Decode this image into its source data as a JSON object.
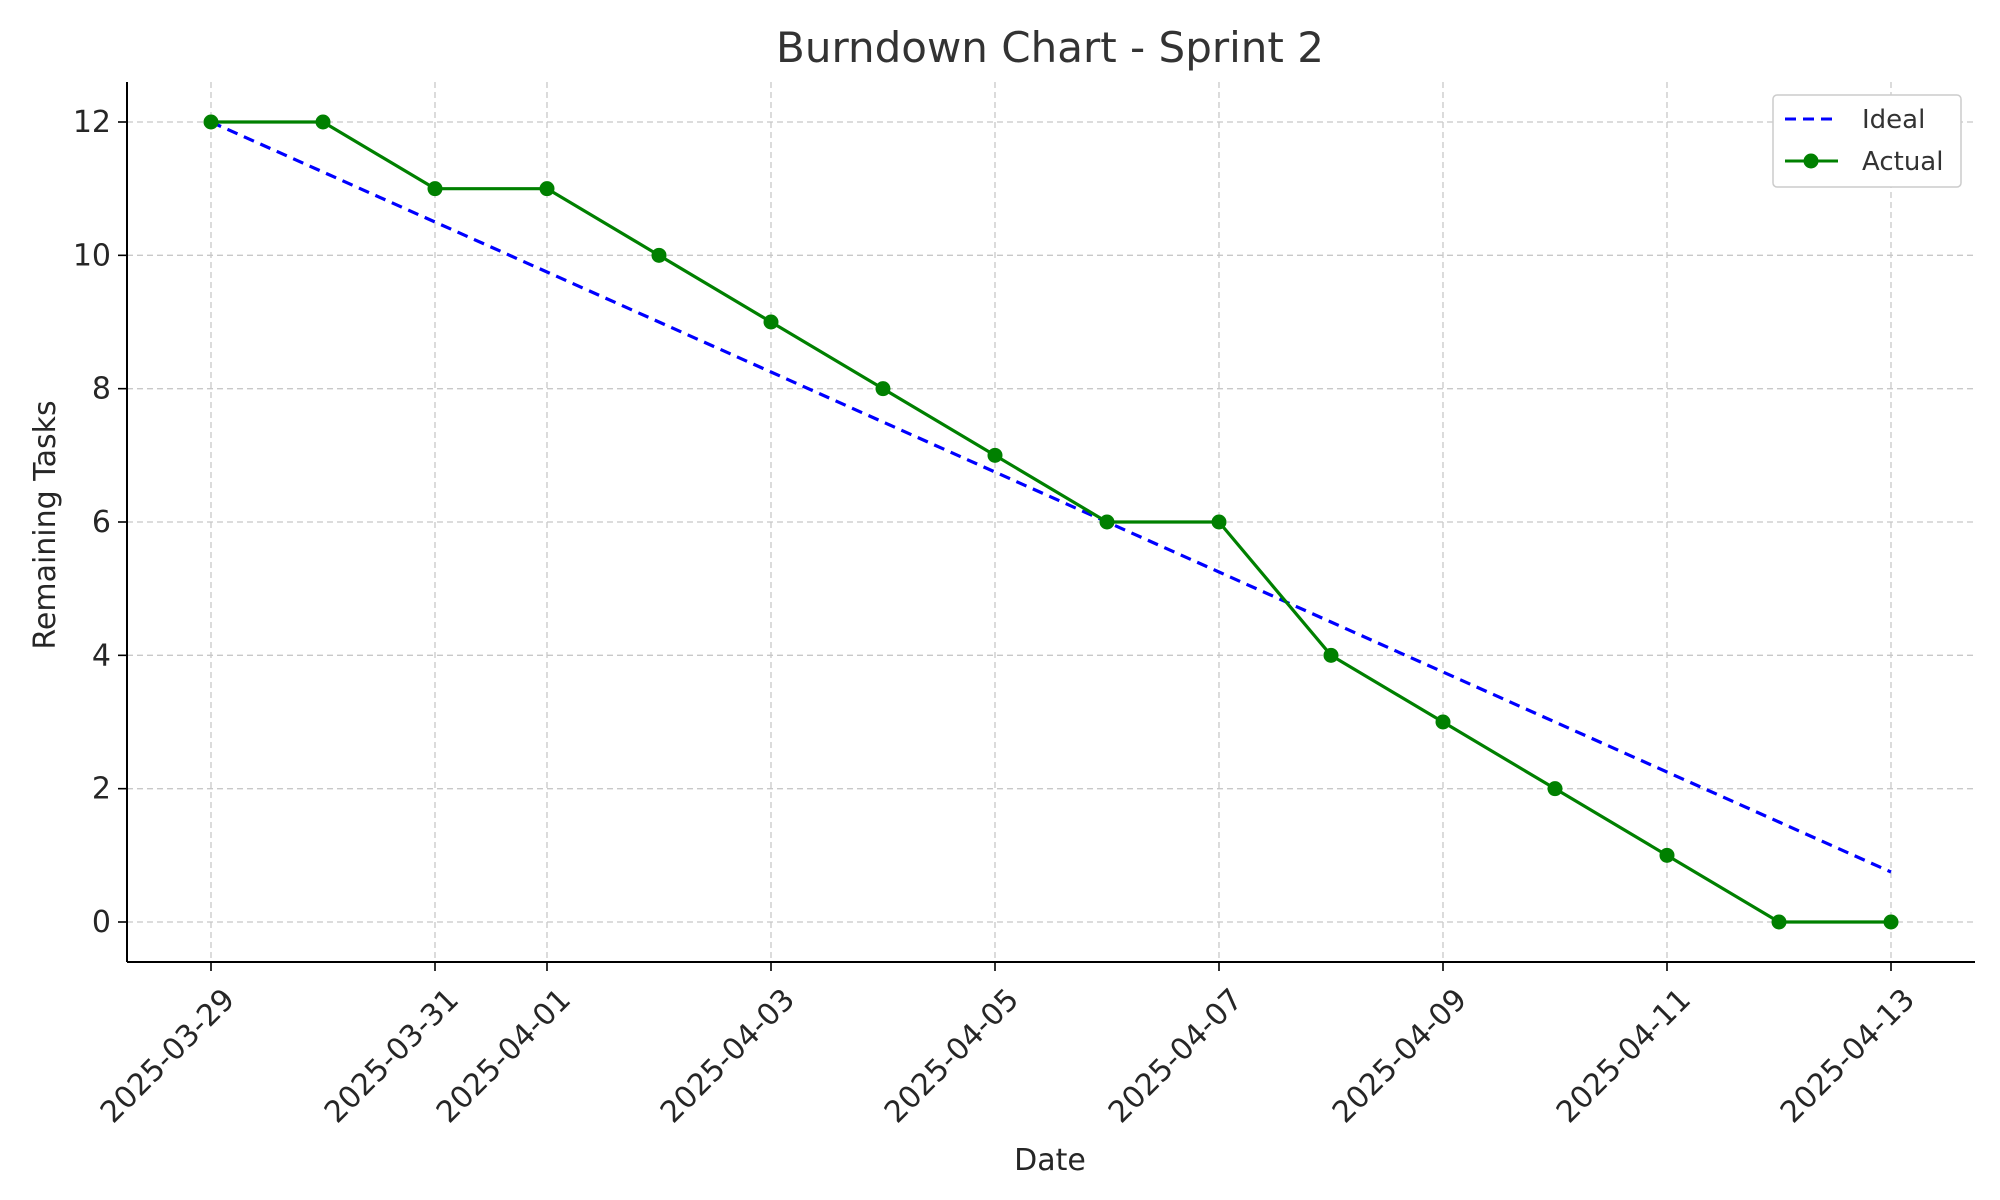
{
  "chart_data": {
    "type": "line",
    "title": "Burndown Chart - Sprint 2",
    "xlabel": "Date",
    "ylabel": "Remaining Tasks",
    "x": [
      "2025-03-29",
      "2025-03-30",
      "2025-03-31",
      "2025-04-01",
      "2025-04-02",
      "2025-04-03",
      "2025-04-04",
      "2025-04-05",
      "2025-04-06",
      "2025-04-07",
      "2025-04-08",
      "2025-04-09",
      "2025-04-10",
      "2025-04-11",
      "2025-04-12",
      "2025-04-13"
    ],
    "xticks": [
      "2025-03-29",
      "2025-03-31",
      "2025-04-01",
      "2025-04-03",
      "2025-04-05",
      "2025-04-07",
      "2025-04-09",
      "2025-04-11",
      "2025-04-13"
    ],
    "yticks": [
      "0",
      "2",
      "4",
      "6",
      "8",
      "10",
      "12"
    ],
    "ylim": [
      -0.6,
      12.6
    ],
    "grid": true,
    "legend_position": "top-right",
    "series": [
      {
        "name": "Ideal",
        "style": "dashed",
        "color": "#0000ff",
        "values": [
          12,
          11.25,
          10.5,
          9.75,
          9,
          8.25,
          7.5,
          6.75,
          6,
          5.25,
          4.5,
          3.75,
          3,
          2.25,
          1.5,
          0.75
        ]
      },
      {
        "name": "Actual",
        "style": "solid-markers",
        "color": "#008000",
        "values": [
          12,
          12,
          11,
          11,
          10,
          9,
          8,
          7,
          6,
          6,
          4,
          3,
          2,
          1,
          0,
          0
        ]
      }
    ]
  }
}
